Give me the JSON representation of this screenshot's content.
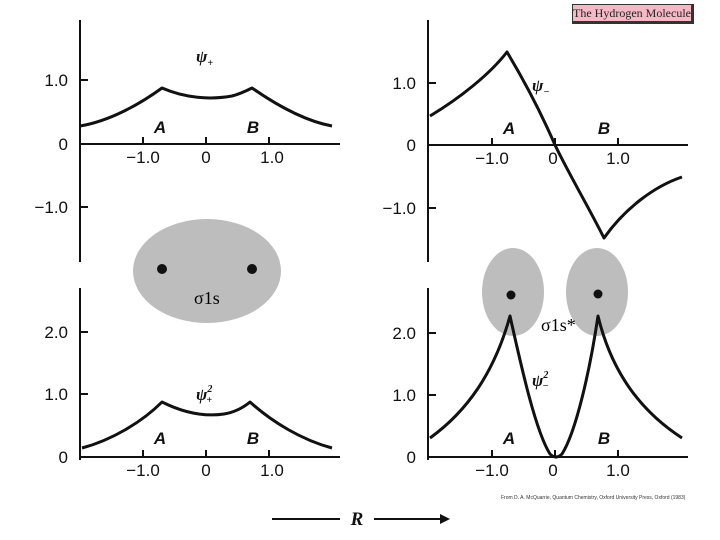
{
  "title": "The Hydrogen Molecule",
  "citation": "From D. A. McQuarrie, Quantum Chemistry, Oxford University Press, Oxford (1983)",
  "r_axis_label": "R",
  "sigma_bonding_label": "σ1s",
  "sigma_antibonding_label": "σ1s*",
  "panels": [
    {
      "id": "psi-plus",
      "fn_symbol": "ψ",
      "fn_sub": "+",
      "fn_sup": "",
      "x_ticks": [
        "−1.0",
        "0",
        "1.0"
      ],
      "y_ticks": [
        "1.0",
        "0",
        "−1.0"
      ],
      "nucleus_labels": [
        "A",
        "B"
      ]
    },
    {
      "id": "psi-minus",
      "fn_symbol": "ψ",
      "fn_sub": "−",
      "fn_sup": "",
      "x_ticks": [
        "−1.0",
        "0",
        "1.0"
      ],
      "y_ticks": [
        "1.0",
        "0",
        "−1.0"
      ],
      "nucleus_labels": [
        "A",
        "B"
      ]
    },
    {
      "id": "psi-plus-squared",
      "fn_symbol": "ψ",
      "fn_sub": "+",
      "fn_sup": "2",
      "x_ticks": [
        "−1.0",
        "0",
        "1.0"
      ],
      "y_ticks": [
        "2.0",
        "1.0",
        "0"
      ],
      "nucleus_labels": [
        "A",
        "B"
      ]
    },
    {
      "id": "psi-minus-squared",
      "fn_symbol": "ψ",
      "fn_sub": "−",
      "fn_sup": "2",
      "x_ticks": [
        "−1.0",
        "0",
        "1.0"
      ],
      "y_ticks": [
        "2.0",
        "1.0",
        "0"
      ],
      "nucleus_labels": [
        "A",
        "B"
      ]
    }
  ],
  "colors": {
    "orbital_fill": "#bdbdbd",
    "title_bg": "#f5b8c4",
    "ink": "#111111"
  }
}
